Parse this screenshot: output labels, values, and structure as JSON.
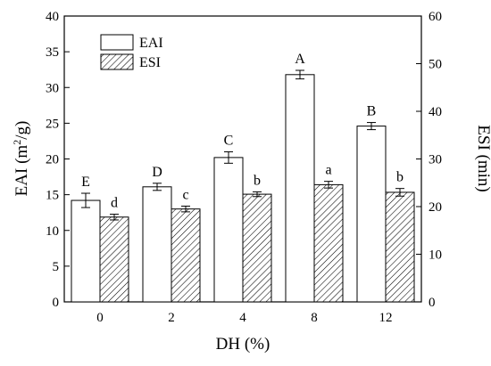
{
  "chart_data": {
    "type": "bar",
    "categories": [
      "0",
      "2",
      "4",
      "8",
      "12"
    ],
    "xlabel": "DH (%)",
    "ylabel_left": "EAI (m²/g)",
    "ylabel_left_base": "EAI (m",
    "ylabel_left_sup": "2",
    "ylabel_left_tail": "/g)",
    "ylabel_right": "ESI (min)",
    "ylim_left": [
      0,
      40
    ],
    "ylim_right": [
      0,
      60
    ],
    "yticks_left": [
      "0",
      "5",
      "10",
      "15",
      "20",
      "25",
      "30",
      "35",
      "40"
    ],
    "yticks_right": [
      "0",
      "10",
      "20",
      "30",
      "40",
      "50",
      "60"
    ],
    "legend_position": "top-left",
    "series": [
      {
        "name": "EAI",
        "axis": "left",
        "fill": "white",
        "values": [
          14.2,
          16.1,
          20.2,
          31.8,
          24.6
        ],
        "errors": [
          1.0,
          0.5,
          0.8,
          0.6,
          0.5
        ],
        "labels": [
          "E",
          "D",
          "C",
          "A",
          "B"
        ]
      },
      {
        "name": "ESI",
        "axis": "right",
        "fill": "hatched",
        "values": [
          17.8,
          19.5,
          22.6,
          24.6,
          23.0
        ],
        "errors": [
          0.6,
          0.6,
          0.5,
          0.7,
          0.8
        ],
        "labels": [
          "d",
          "c",
          "b",
          "a",
          "b"
        ]
      }
    ]
  }
}
